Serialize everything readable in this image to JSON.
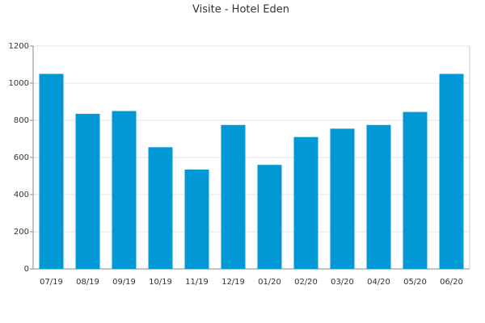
{
  "chart_data": {
    "type": "bar",
    "title": "Visite - Hotel Eden",
    "categories": [
      "07/19",
      "08/19",
      "09/19",
      "10/19",
      "11/19",
      "12/19",
      "01/20",
      "02/20",
      "03/20",
      "04/20",
      "05/20",
      "06/20"
    ],
    "values": [
      1050,
      835,
      850,
      655,
      535,
      775,
      560,
      710,
      755,
      775,
      845,
      1050
    ],
    "color": "#0099d6",
    "ylim": [
      0,
      1200
    ],
    "yticks": [
      0,
      200,
      400,
      600,
      800,
      1000,
      1200
    ],
    "grid": true
  }
}
